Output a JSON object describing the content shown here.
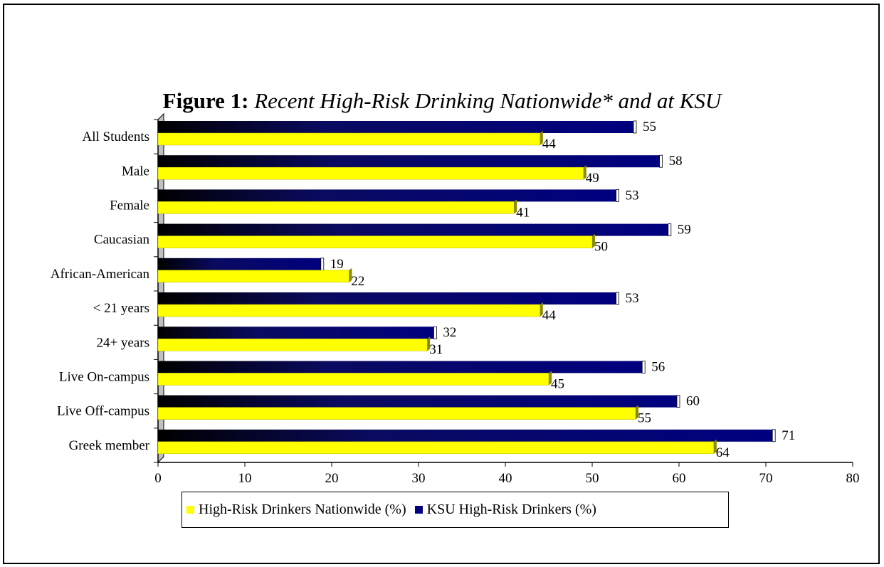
{
  "chart_data": {
    "type": "bar",
    "orientation": "horizontal",
    "title_label": "Figure 1:",
    "title_text": "Recent High-Risk Drinking Nationwide* and at KSU",
    "categories": [
      "All Students",
      "Male",
      "Female",
      "Caucasian",
      "African-American",
      "< 21 years",
      "24+ years",
      "Live On-campus",
      "Live Off-campus",
      "Greek member"
    ],
    "series": [
      {
        "name": "High-Risk Drinkers Nationwide (%)",
        "color": "#FFFF00",
        "values": [
          44,
          49,
          41,
          50,
          22,
          44,
          31,
          45,
          55,
          64
        ]
      },
      {
        "name": "KSU High-Risk Drinkers (%)",
        "color": "#000080",
        "values": [
          55,
          58,
          53,
          59,
          19,
          53,
          32,
          56,
          60,
          71
        ]
      }
    ],
    "xlim": [
      0,
      80
    ],
    "xticks": [
      0,
      10,
      20,
      30,
      40,
      50,
      60,
      70,
      80
    ],
    "grid": false,
    "legend_position": "bottom"
  }
}
